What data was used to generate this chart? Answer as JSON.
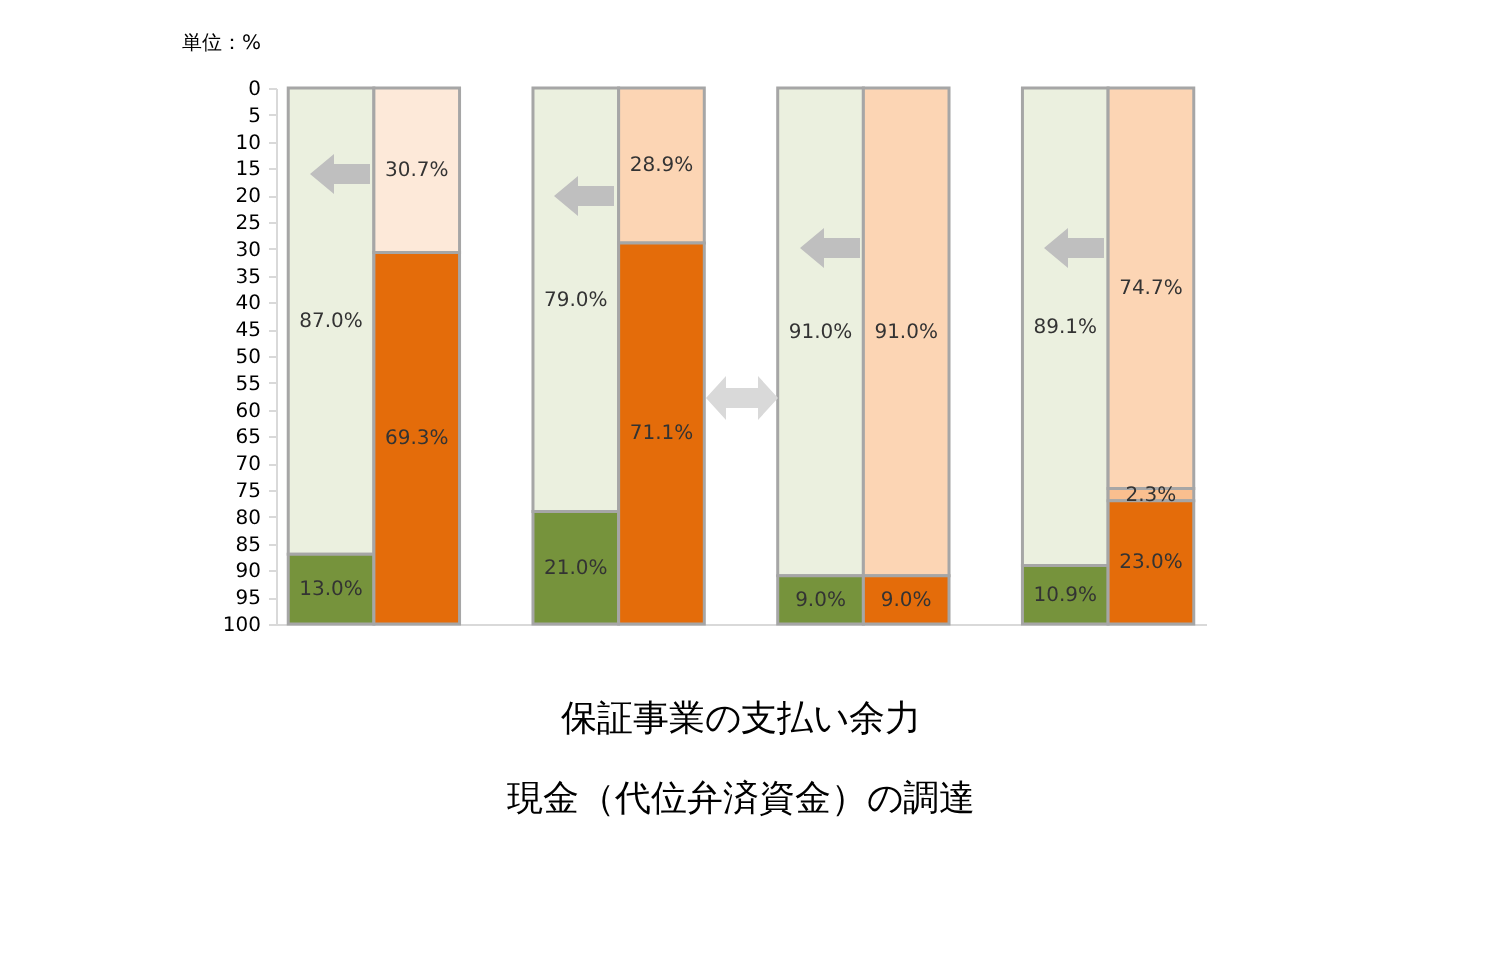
{
  "chart_data": {
    "type": "bar",
    "stacked": true,
    "title": "保証事業の支払い余力",
    "subtitle": "現金（代位弁済資金）の調達",
    "ylabel": "単位：%",
    "categories": [
      null,
      null,
      null,
      null,
      null,
      null,
      null,
      null
    ],
    "ylim": [
      100,
      0
    ],
    "yticks": [
      0,
      5,
      10,
      15,
      20,
      25,
      30,
      35,
      40,
      45,
      50,
      55,
      60,
      65,
      70,
      75,
      80,
      85,
      90,
      95,
      100
    ],
    "grid": false,
    "tick_labels": "y",
    "series": [
      {
        "values": [
          87.0,
          30.7,
          79.0,
          28.9,
          91.0,
          91.0,
          89.1,
          74.7
        ],
        "colors": [
          "#ebf0df",
          "#fde9d9",
          "#ebf0df",
          "#fcd5b4",
          "#ebf0df",
          "#fcd5b4",
          "#ebf0df",
          "#fcd5b4"
        ],
        "value_labels": [
          "87.0%",
          "30.7%",
          "79.0%",
          "28.9%",
          "91.0%",
          "91.0%",
          "89.1%",
          "74.7%"
        ]
      },
      {
        "values": [
          null,
          null,
          null,
          null,
          null,
          null,
          null,
          2.3
        ],
        "colors": [
          null,
          null,
          null,
          null,
          null,
          null,
          null,
          "#fabf8f"
        ],
        "value_labels": [
          null,
          null,
          null,
          null,
          null,
          null,
          null,
          "2.3%"
        ]
      },
      {
        "values": [
          13.0,
          69.3,
          21.0,
          71.1,
          9.0,
          9.0,
          10.9,
          23.0
        ],
        "colors": [
          "#76933c",
          "#e46c0a",
          "#76933c",
          "#e46c0a",
          "#76933c",
          "#e46c0a",
          "#76933c",
          "#e46c0a"
        ],
        "value_labels": [
          "13.0%",
          "69.3%",
          "21.0%",
          "71.1%",
          "9.0%",
          "9.0%",
          "10.9%",
          "23.0%"
        ]
      }
    ]
  }
}
